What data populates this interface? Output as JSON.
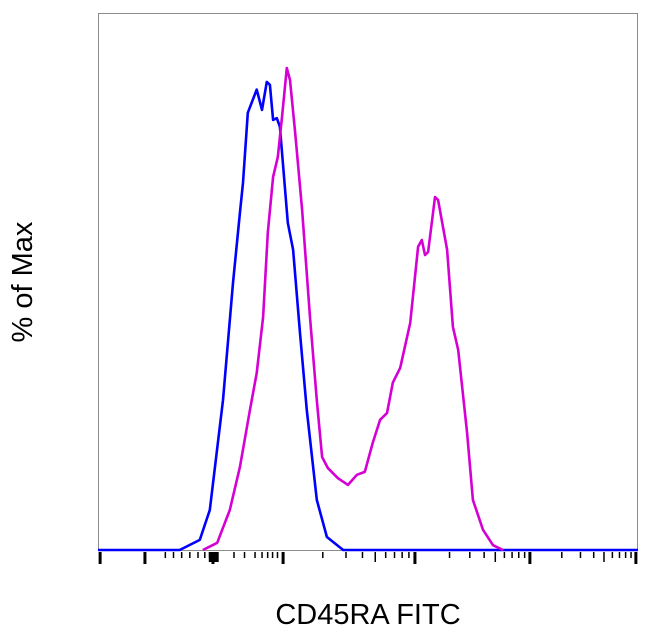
{
  "chart_data": {
    "type": "line",
    "title": "",
    "xlabel": "CD45RA FITC",
    "ylabel": "% of Max",
    "xlim": [
      0,
      1024
    ],
    "ylim": [
      0,
      111.4
    ],
    "x_scale": "logicle (biexponential), no tick labels printed",
    "x_major_ticks": [
      4,
      89,
      218,
      351,
      601,
      819,
      1020
    ],
    "grid": false,
    "legend": "none",
    "series": [
      {
        "color": "#0000ff",
        "x": [
          0,
          155,
          193,
          212,
          237,
          256,
          269,
          275,
          284,
          301,
          311,
          320,
          326,
          332,
          339,
          345,
          360,
          370,
          383,
          396,
          415,
          434,
          465,
          1024
        ],
        "y": [
          0,
          0,
          2.1,
          8.3,
          31.1,
          55.4,
          69.9,
          76.2,
          90.7,
          95.5,
          91.3,
          97.1,
          96.5,
          89.2,
          89.6,
          87.8,
          67.9,
          62.3,
          45,
          29,
          10.4,
          2.7,
          0,
          0
        ]
      },
      {
        "color": "#d400d4",
        "x": [
          199,
          226,
          250,
          269,
          288,
          301,
          313,
          322,
          332,
          341,
          349,
          358,
          364,
          374,
          387,
          402,
          415,
          425,
          436,
          455,
          474,
          491,
          506,
          521,
          535,
          548,
          559,
          573,
          592,
          607,
          614,
          620,
          626,
          639,
          645,
          662,
          673,
          683,
          700,
          711,
          730,
          749,
          768
        ],
        "y": [
          0,
          1.5,
          8.3,
          17.2,
          29,
          36.7,
          48.3,
          65.8,
          77.4,
          81.5,
          89.8,
          100,
          97.5,
          86.5,
          70.6,
          48.3,
          31.1,
          19.3,
          17,
          14.9,
          13.5,
          15.6,
          16.2,
          22.2,
          27,
          28.4,
          34.7,
          37.8,
          47.1,
          62.9,
          64.3,
          61.2,
          61.8,
          73.2,
          72.6,
          62.3,
          46.3,
          41.5,
          24.3,
          10.4,
          4.2,
          1,
          0
        ]
      }
    ]
  }
}
